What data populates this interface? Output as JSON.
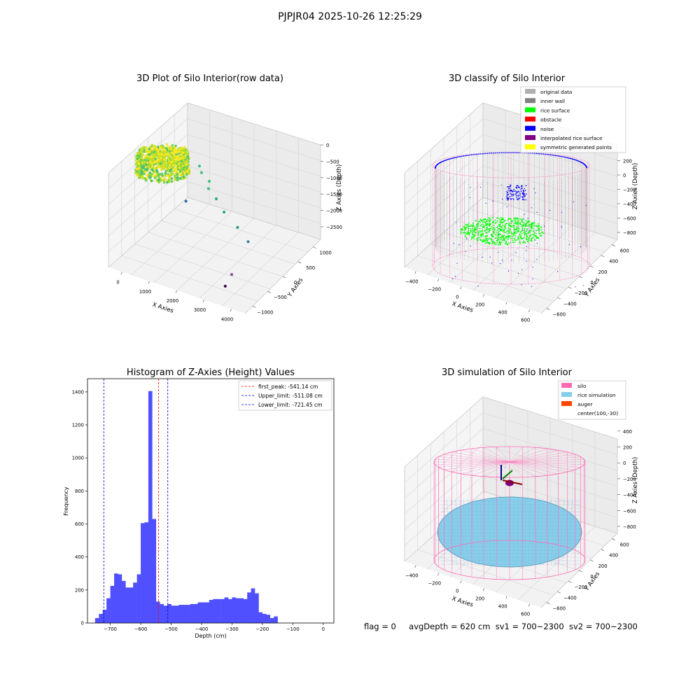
{
  "figure": {
    "suptitle": "PJPJR04 2025-10-26 12:25:29",
    "status": {
      "flag": "flag = 0",
      "avg_depth": "avgDepth = 620 cm",
      "sv1": "sv1 = 700~2300",
      "sv2": "sv2 = 700~2300"
    }
  },
  "colors": {
    "hist_bar": "#5050ff",
    "first_peak": "#ff0000",
    "limits": "#0000cc",
    "silo": "#ff69b4",
    "rice_simulation": "#87ceeb",
    "auger": "#ff4500",
    "rice_surface": "#00ff00",
    "noise": "#0000ff",
    "inner_wall": "#808080",
    "original_data": "#b0b0b0",
    "obstacle": "#ff0000",
    "interpolated": "#800080",
    "symmetric": "#ffff00"
  },
  "chart_data": [
    {
      "type": "scatter",
      "title": "3D Plot of Silo Interior(row data)",
      "xlabel": "X Axies",
      "ylabel": "Y Axies",
      "zlabel": "Z Axies (Depth)",
      "x_ticks": [
        "0",
        "1000",
        "2000",
        "3000",
        "4000"
      ],
      "y_ticks": [
        "−1000",
        "−500",
        "0",
        "500",
        "1000"
      ],
      "z_ticks": [
        "−2500",
        "−2000",
        "−1500",
        "−1000",
        "−500",
        "0"
      ],
      "outlier_points": [
        {
          "x": 900,
          "y": 400,
          "z": -900,
          "c": "#3cc47c"
        },
        {
          "x": 1100,
          "y": 300,
          "z": -950,
          "c": "#3cc47c"
        },
        {
          "x": 1500,
          "y": 200,
          "z": -1000,
          "c": "#3cc47c"
        },
        {
          "x": 1600,
          "y": 100,
          "z": -1100,
          "c": "#3cc47c"
        },
        {
          "x": 2000,
          "y": 0,
          "z": -1200,
          "c": "#2aab80"
        },
        {
          "x": 2400,
          "y": -100,
          "z": -1400,
          "c": "#2aab80"
        },
        {
          "x": 3000,
          "y": -200,
          "z": -1600,
          "c": "#2a9a88"
        },
        {
          "x": 3500,
          "y": -300,
          "z": -1800,
          "c": "#3a7ea0"
        },
        {
          "x": 300,
          "y": 500,
          "z": -2300,
          "c": "#3a6ea5"
        },
        {
          "x": 3300,
          "y": -600,
          "z": -2600,
          "c": "#8a4aa0"
        },
        {
          "x": 3200,
          "y": -700,
          "z": -2900,
          "c": "#440154"
        }
      ]
    },
    {
      "type": "scatter",
      "title": "3D classify of Silo Interior",
      "xlabel": "X Axies",
      "ylabel": "Y Axies",
      "zlabel": "Z Axies (Depth)",
      "x_ticks": [
        "−400",
        "−200",
        "0",
        "200",
        "400",
        "600"
      ],
      "y_ticks": [
        "−600",
        "−400",
        "−200",
        "0",
        "200",
        "400",
        "600"
      ],
      "z_ticks": [
        "−800",
        "−600",
        "−400",
        "−200",
        "0",
        "200"
      ],
      "legend": [
        "original data",
        "inner wall",
        "rice surface",
        "obstacle",
        "noise",
        "interpolated rice surface",
        "symmetric generated points"
      ],
      "legend_placement": "top-right"
    },
    {
      "type": "bar",
      "title": "Histogram of Z-Axies (Height) Values",
      "xlabel": "Depth (cm)",
      "ylabel": "Frequency",
      "x_range": [
        -775,
        35
      ],
      "ylim": [
        0,
        1480
      ],
      "x_ticks": [
        -700,
        -600,
        -500,
        -400,
        -300,
        -200,
        -100,
        0
      ],
      "x_tick_labels": [
        "−700",
        "−600",
        "−500",
        "−400",
        "−300",
        "−200",
        "−100",
        "0"
      ],
      "y_ticks": [
        0,
        200,
        400,
        600,
        800,
        1000,
        1200,
        1400
      ],
      "bin_start": -750,
      "bin_width": 12.5,
      "values": [
        30,
        55,
        80,
        150,
        225,
        300,
        295,
        255,
        215,
        215,
        245,
        295,
        605,
        610,
        1405,
        630,
        130,
        115,
        105,
        115,
        105,
        105,
        110,
        110,
        110,
        115,
        115,
        125,
        125,
        125,
        140,
        145,
        145,
        145,
        155,
        145,
        155,
        150,
        150,
        145,
        185,
        210,
        180,
        65,
        55,
        50,
        30,
        40
      ],
      "lines": [
        {
          "label": "first_peak: -541.14 cm",
          "x": -541.14,
          "style": "red"
        },
        {
          "label": "Upper_limit: -511.08 cm",
          "x": -511.08,
          "style": "blue"
        },
        {
          "label": "Lower_limit: -721.45 cm",
          "x": -721.45,
          "style": "blue"
        }
      ],
      "legend_placement": "top-right"
    },
    {
      "type": "scatter",
      "title": "3D simulation of Silo Interior",
      "xlabel": "X Axies",
      "ylabel": "Y Axies",
      "zlabel": "Z Axies (Depth)",
      "x_ticks": [
        "−400",
        "−200",
        "0",
        "200",
        "400",
        "600"
      ],
      "y_ticks": [
        "−600",
        "−400",
        "−200",
        "0",
        "200",
        "400",
        "600"
      ],
      "z_ticks": [
        "−800",
        "−600",
        "−400",
        "−200",
        "0",
        "200",
        "400"
      ],
      "legend": [
        "silo",
        "rice simulation",
        "auger",
        "center(100,-30)"
      ],
      "legend_placement": "top-right"
    }
  ]
}
